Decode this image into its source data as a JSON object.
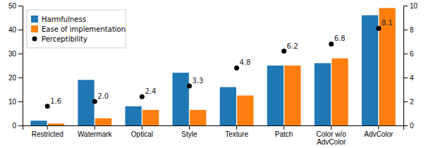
{
  "chart_data": {
    "type": "bar",
    "categories": [
      "Restricted",
      "Watermark",
      "Optical",
      "Style",
      "Texture",
      "Patch",
      "Color w/o\nAdvColor",
      "AdvColor"
    ],
    "series": [
      {
        "name": "Harmfulness",
        "values": [
          2,
          19,
          8,
          22,
          16,
          25,
          26,
          46
        ]
      },
      {
        "name": "Ease of implementation",
        "values": [
          0.8,
          3,
          6.5,
          6.5,
          12.5,
          25,
          28,
          49
        ]
      },
      {
        "name": "Perceptibility",
        "type": "scatter",
        "axis": "y2",
        "marker": "circle",
        "color": "black",
        "data_labels": true,
        "values": [
          1.6,
          2.0,
          2.4,
          3.3,
          4.8,
          6.2,
          6.8,
          8.1
        ],
        "value_labels": [
          "1.6",
          "2.0",
          "2.4",
          "3.3",
          "4.8",
          "6.2",
          "6.8",
          "8.1"
        ]
      }
    ],
    "ylim": [
      0,
      50
    ],
    "yticks": [
      0,
      10,
      20,
      30,
      40,
      50
    ],
    "y2lim": [
      0,
      10
    ],
    "y2ticks": [
      0,
      2,
      4,
      6,
      8,
      10
    ],
    "legend": "upper left",
    "grid": false
  }
}
